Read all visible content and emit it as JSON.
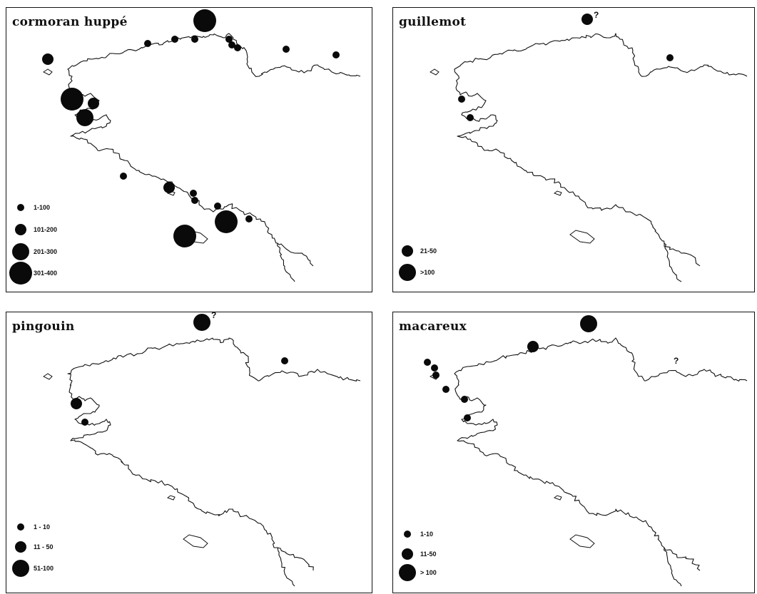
{
  "panels": [
    {
      "title": "cormoran huppé",
      "legend": [
        "1-100",
        "101-200",
        "201-300",
        "301-400"
      ],
      "colonies": [
        {
          "size": 2,
          "note": ""
        },
        {
          "size": 1,
          "note": ""
        },
        {
          "size": 1,
          "note": ""
        },
        {
          "size": 1,
          "note": ""
        },
        {
          "size": 1,
          "note": ""
        },
        {
          "size": 1,
          "note": ""
        },
        {
          "size": 1,
          "note": ""
        },
        {
          "size": 4,
          "note": ""
        },
        {
          "size": 3,
          "note": ""
        },
        {
          "size": 2,
          "note": ""
        },
        {
          "size": 4,
          "note": ""
        },
        {
          "size": 1,
          "note": ""
        },
        {
          "size": 2,
          "note": ""
        },
        {
          "size": 1,
          "note": ""
        },
        {
          "size": 1,
          "note": ""
        },
        {
          "size": 1,
          "note": ""
        },
        {
          "size": 1,
          "note": ""
        },
        {
          "size": 1,
          "note": ""
        },
        {
          "size": 4,
          "note": ""
        },
        {
          "size": 4,
          "note": ""
        },
        {
          "size": 1,
          "note": ""
        }
      ]
    },
    {
      "title": "guillemot",
      "legend": [
        "21-50",
        ">100"
      ],
      "colonies": [
        {
          "size": 2,
          "note": "?"
        },
        {
          "size": 1,
          "note": ""
        },
        {
          "size": 1,
          "note": ""
        },
        {
          "size": 1,
          "note": ""
        }
      ]
    },
    {
      "title": "pingouin",
      "legend": [
        "1 - 10",
        "11 - 50",
        "51-100"
      ],
      "colonies": [
        {
          "size": 3,
          "note": "?"
        },
        {
          "size": 1,
          "note": ""
        },
        {
          "size": 2,
          "note": ""
        },
        {
          "size": 1,
          "note": ""
        }
      ]
    },
    {
      "title": "macareux",
      "legend": [
        "1-10",
        "11-50",
        "> 100"
      ],
      "colonies": [
        {
          "size": 3,
          "note": ""
        },
        {
          "size": 2,
          "note": ""
        },
        {
          "size": 0,
          "note": "?"
        },
        {
          "size": 1,
          "note": ""
        },
        {
          "size": 1,
          "note": ""
        },
        {
          "size": 1,
          "note": ""
        },
        {
          "size": 1,
          "note": ""
        },
        {
          "size": 1,
          "note": ""
        },
        {
          "size": 1,
          "note": ""
        }
      ]
    }
  ]
}
